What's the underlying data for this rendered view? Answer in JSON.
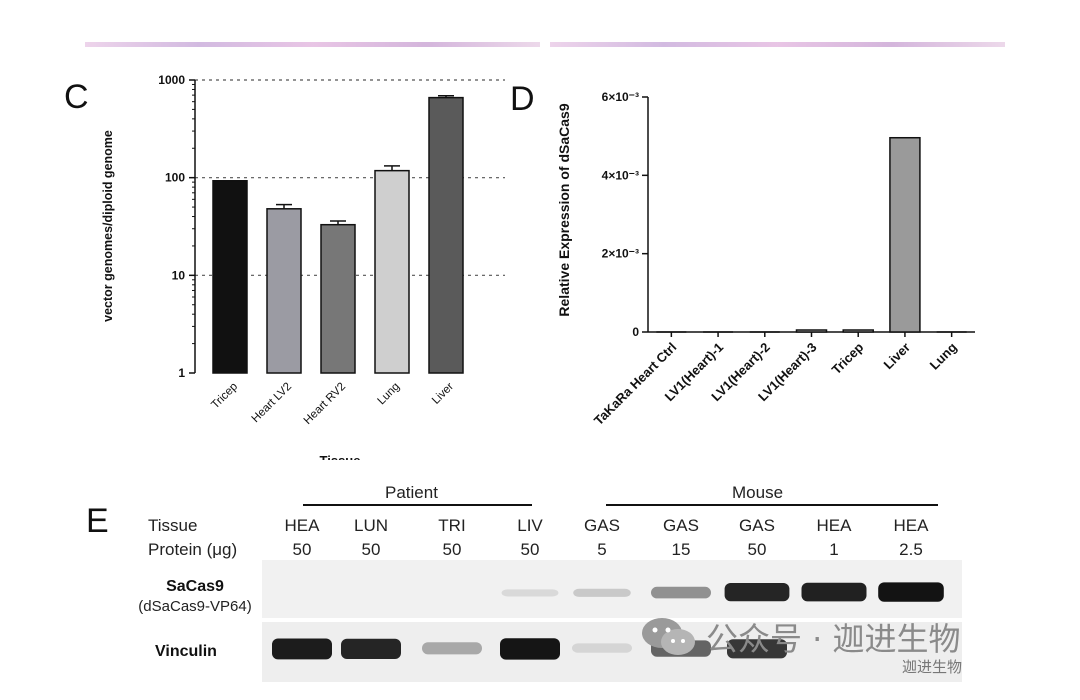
{
  "panels": {
    "c": "C",
    "d": "D",
    "e": "E"
  },
  "chart_data": [
    {
      "type": "bar",
      "panel": "C",
      "title": "",
      "xlabel": "Tissue",
      "ylabel": "vector genomes/diploid genome",
      "yscale": "log",
      "ylim": [
        1,
        1000
      ],
      "yticks": [
        "1",
        "10",
        "100",
        "1000"
      ],
      "grid": "dotted lines at 10, 100, 1000",
      "categories": [
        "Tricep",
        "Heart LV2",
        "Heart RV2",
        "Lung",
        "Liver"
      ],
      "values": [
        93,
        48,
        33,
        118,
        660
      ],
      "errors": [
        0,
        5,
        3,
        14,
        30
      ],
      "colors": [
        "#111111",
        "#9b9ba3",
        "#777777",
        "#cfcfcf",
        "#5a5a5a"
      ]
    },
    {
      "type": "bar",
      "panel": "D",
      "title": "",
      "xlabel": "",
      "ylabel": "Relative Expression of dSaCas9",
      "ylim": [
        0,
        0.006
      ],
      "yticks": [
        "0",
        "2×10⁻³",
        "4×10⁻³",
        "6×10⁻³"
      ],
      "categories": [
        "TaKaRa Heart Ctrl",
        "LV1(Heart)-1",
        "LV1(Heart)-2",
        "LV1(Heart)-3",
        "Tricep",
        "Liver",
        "Lung"
      ],
      "values": [
        0,
        0,
        0,
        2e-05,
        2e-05,
        0.00496,
        0
      ],
      "colors": [
        "#cccccc",
        "#cccccc",
        "#cccccc",
        "#cccccc",
        "#cccccc",
        "#9a9a9a",
        "#cccccc"
      ]
    }
  ],
  "blot": {
    "groups": [
      {
        "label": "Patient"
      },
      {
        "label": "Mouse"
      }
    ],
    "row_tissue_label": "Tissue",
    "row_protein_label": "Protein (μg)",
    "lanes": [
      {
        "tissue": "HEA",
        "protein": "50"
      },
      {
        "tissue": "LUN",
        "protein": "50"
      },
      {
        "tissue": "TRI",
        "protein": "50"
      },
      {
        "tissue": "LIV",
        "protein": "50"
      },
      {
        "tissue": "GAS",
        "protein": "5"
      },
      {
        "tissue": "GAS",
        "protein": "15"
      },
      {
        "tissue": "GAS",
        "protein": "50"
      },
      {
        "tissue": "HEA",
        "protein": "1"
      },
      {
        "tissue": "HEA",
        "protein": "2.5"
      }
    ],
    "bands": [
      {
        "name": "SaCas9",
        "subtitle": "(dSaCas9-VP64)",
        "intensity": [
          0.0,
          0.0,
          0.0,
          0.08,
          0.15,
          0.4,
          0.88,
          0.9,
          0.96
        ]
      },
      {
        "name": "Vinculin",
        "subtitle": "",
        "intensity": [
          0.92,
          0.88,
          0.3,
          0.95,
          0.1,
          0.6,
          0.8,
          0.0,
          0.0
        ]
      }
    ]
  },
  "watermark": {
    "text": "公众号 · 迦进生物",
    "small": "迦进生物"
  }
}
